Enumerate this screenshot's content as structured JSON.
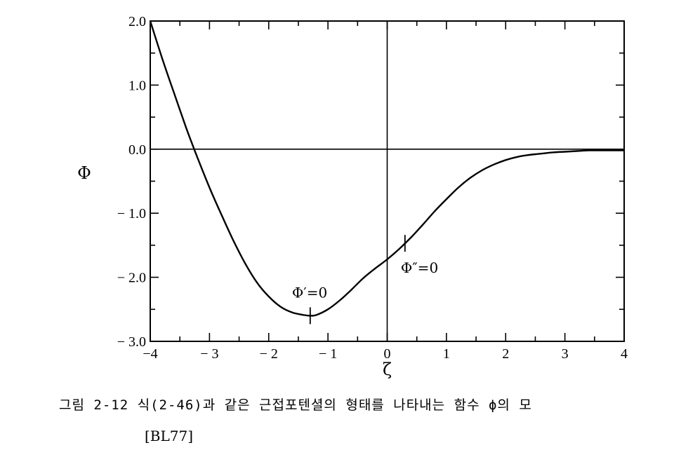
{
  "chart_data": {
    "type": "line",
    "xlabel": "ζ",
    "ylabel": "Φ",
    "xlim": [
      -4,
      4
    ],
    "ylim": [
      -3.0,
      2.0
    ],
    "x_ticks": [
      "−4",
      "− 3",
      "− 2",
      "− 1",
      "0",
      "1",
      "2",
      "3",
      "4"
    ],
    "y_ticks": [
      "2.0",
      "1.0",
      "0.0",
      "− 1.0",
      "− 2.0",
      "− 3.0"
    ],
    "reference_lines": {
      "x": 0,
      "y": 0
    },
    "series": [
      {
        "x": [
          -4.0,
          -3.8,
          -3.6,
          -3.4,
          -3.3,
          -3.2,
          -3.0,
          -2.8,
          -2.6,
          -2.4,
          -2.2,
          -2.0,
          -1.8,
          -1.6,
          -1.4,
          -1.3,
          -1.2,
          -1.0,
          -0.8,
          -0.6,
          -0.4,
          -0.2,
          0.0,
          0.2,
          0.4,
          0.6,
          0.8,
          1.0,
          1.2,
          1.4,
          1.6,
          1.8,
          2.0,
          2.2,
          2.4,
          2.6,
          2.8,
          3.0,
          3.2,
          3.4,
          3.6,
          3.8,
          4.0
        ],
        "y": [
          2.0,
          1.42,
          0.88,
          0.35,
          0.1,
          -0.14,
          -0.6,
          -1.02,
          -1.42,
          -1.78,
          -2.08,
          -2.3,
          -2.46,
          -2.55,
          -2.59,
          -2.6,
          -2.59,
          -2.5,
          -2.36,
          -2.19,
          -2.01,
          -1.86,
          -1.72,
          -1.56,
          -1.38,
          -1.18,
          -0.97,
          -0.78,
          -0.6,
          -0.45,
          -0.33,
          -0.24,
          -0.17,
          -0.12,
          -0.09,
          -0.07,
          -0.05,
          -0.04,
          -0.03,
          -0.02,
          -0.02,
          -0.02,
          -0.02
        ]
      }
    ],
    "markers": [
      {
        "x": -1.3,
        "y": -2.6,
        "label": "Φ′=0"
      },
      {
        "x": 0.3,
        "y": -1.47,
        "label": "Φ″=0"
      }
    ]
  },
  "caption": {
    "text": "그림 2-12 식(2-46)과 같은 근접포텐셜의 형태를 나타내는 함수 ϕ의 모",
    "citation": "[BL77]"
  }
}
